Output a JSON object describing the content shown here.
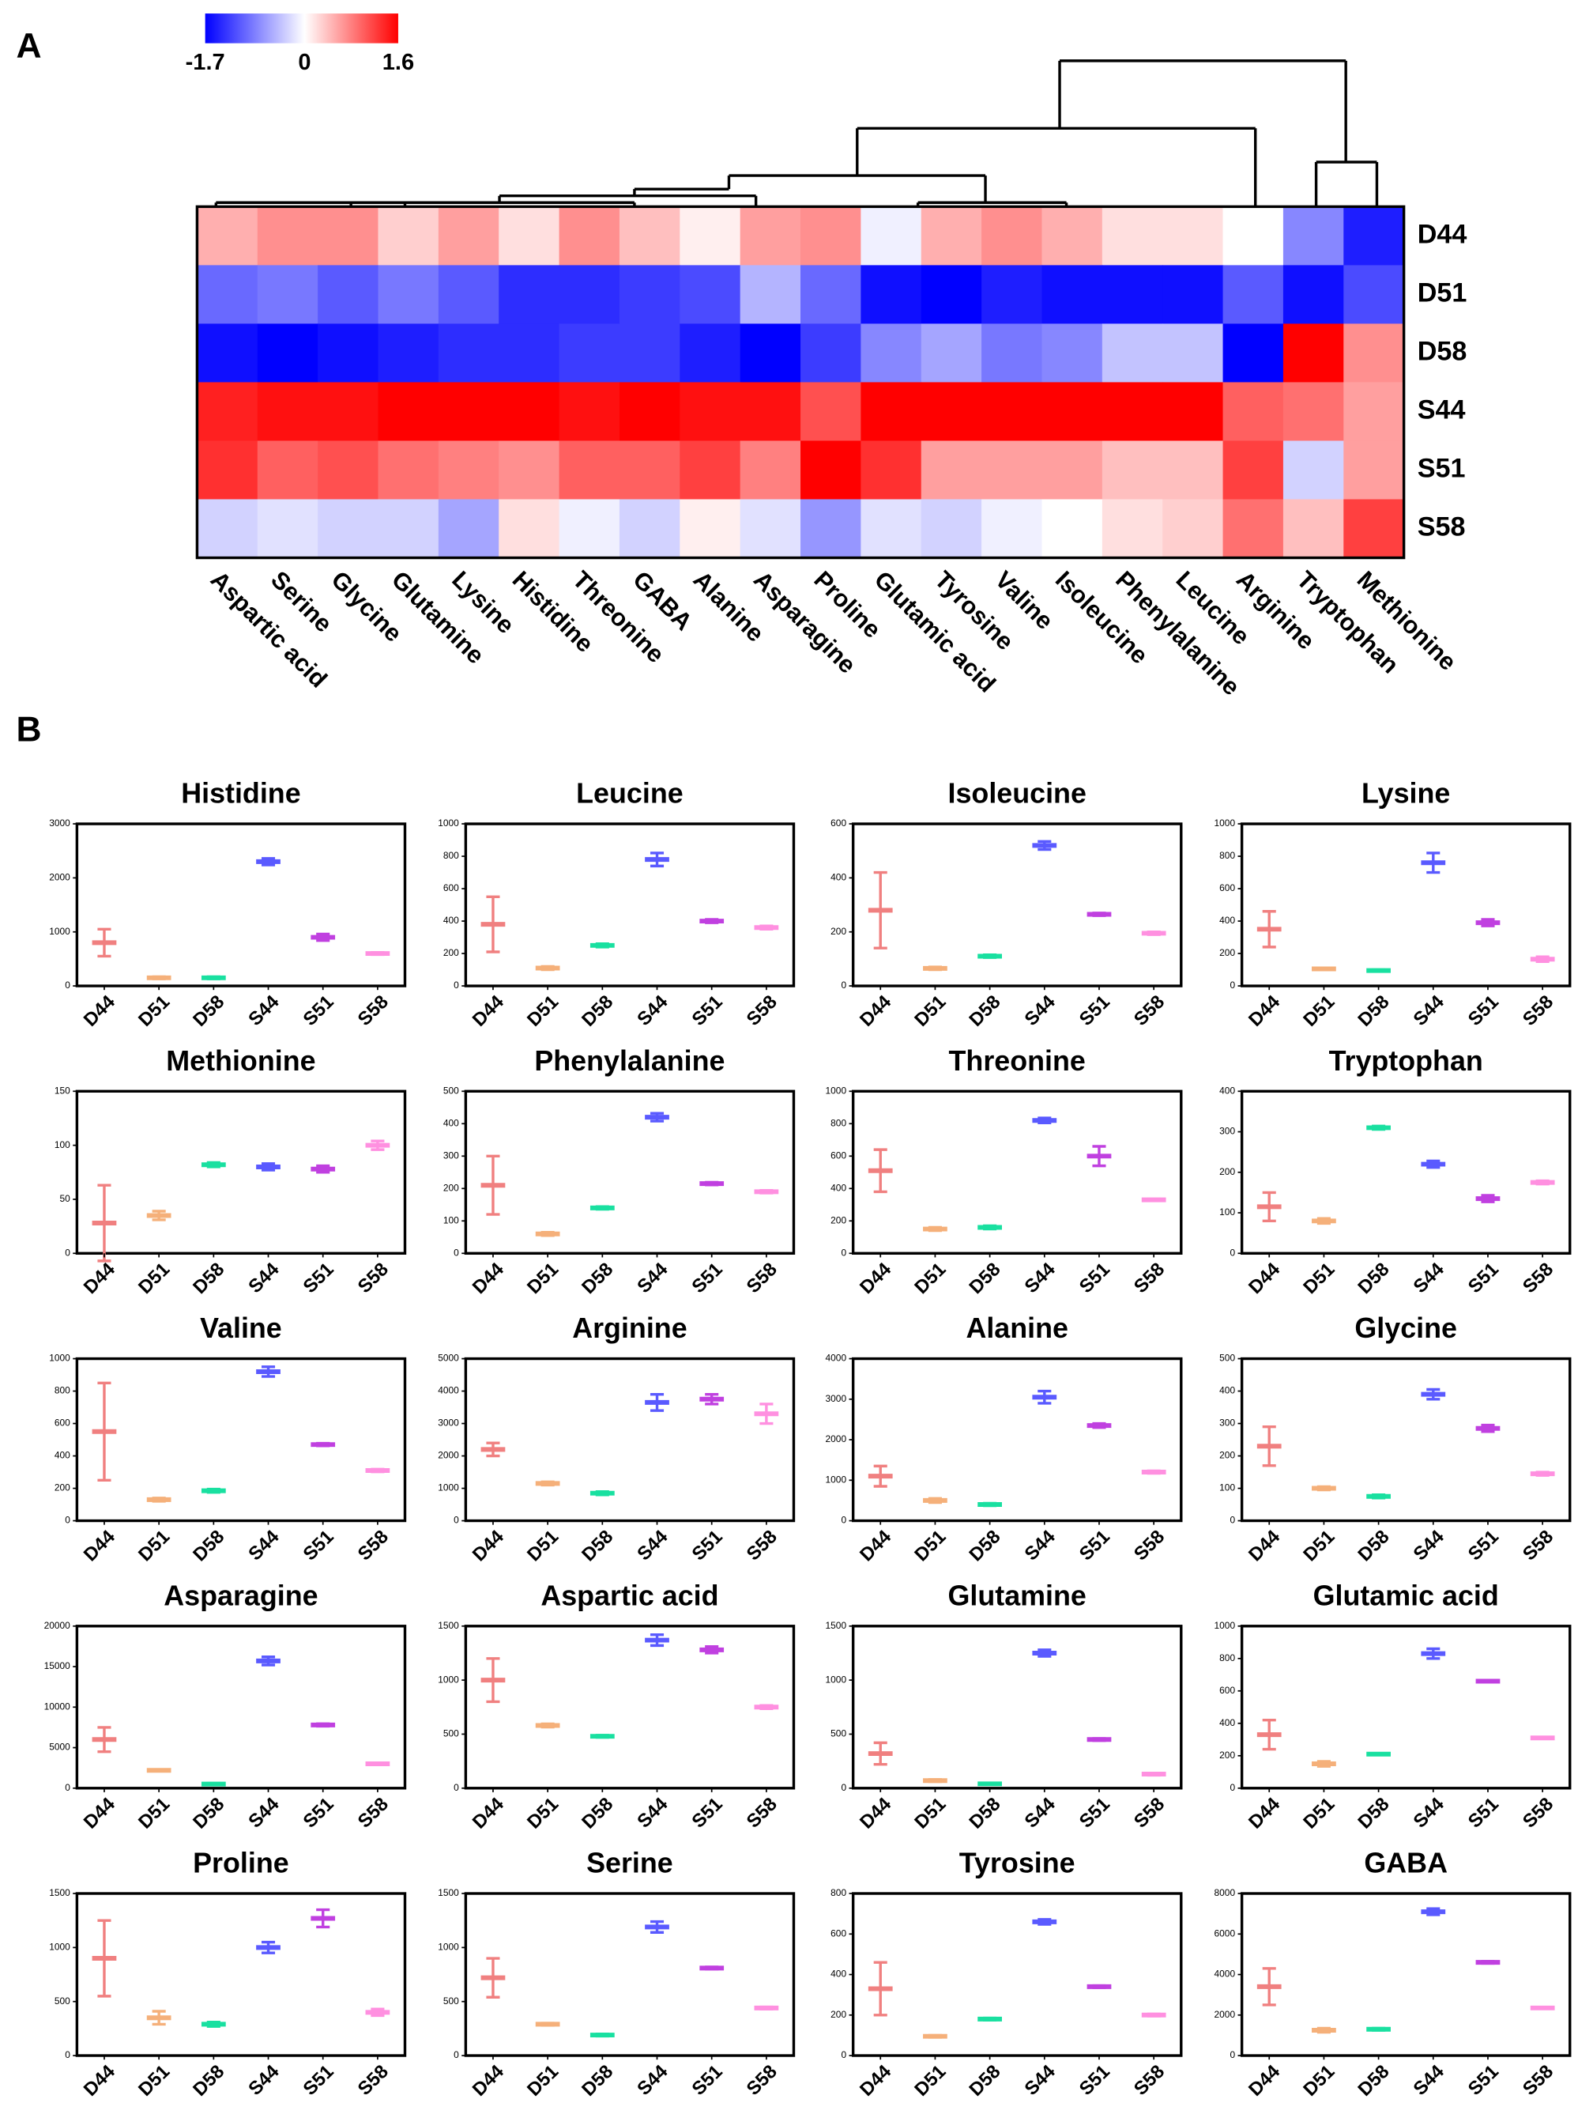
{
  "panel_labels": [
    "A",
    "B"
  ],
  "chart_data": [
    {
      "type": "heatmap",
      "columns": [
        "Aspartic acid",
        "Serine",
        "Glycine",
        "Glutamine",
        "Lysine",
        "Histidine",
        "Threonine",
        "GABA",
        "Alanine",
        "Asparagine",
        "Proline",
        "Glutamic acid",
        "Tyrosine",
        "Valine",
        "Isoleucine",
        "Phenylalanine",
        "Leucine",
        "Arginine",
        "Tryptophan",
        "Methionine"
      ],
      "rows": [
        "D44",
        "D51",
        "D58",
        "S44",
        "S51",
        "S58"
      ],
      "values": [
        [
          0.5,
          0.7,
          0.7,
          0.3,
          0.6,
          0.2,
          0.7,
          0.4,
          0.1,
          0.6,
          0.7,
          -0.1,
          0.5,
          0.7,
          0.5,
          0.2,
          0.2,
          0.0,
          -0.8,
          -1.5
        ],
        [
          -1.0,
          -0.9,
          -1.1,
          -0.9,
          -1.1,
          -1.4,
          -1.4,
          -1.3,
          -1.2,
          -0.5,
          -1.0,
          -1.6,
          -1.7,
          -1.5,
          -1.6,
          -1.6,
          -1.6,
          -1.1,
          -1.6,
          -1.2
        ],
        [
          -1.6,
          -1.7,
          -1.6,
          -1.5,
          -1.4,
          -1.4,
          -1.3,
          -1.3,
          -1.5,
          -1.7,
          -1.3,
          -0.8,
          -0.6,
          -0.9,
          -0.8,
          -0.4,
          -0.4,
          -1.7,
          1.6,
          0.7
        ],
        [
          1.4,
          1.5,
          1.5,
          1.6,
          1.6,
          1.6,
          1.5,
          1.6,
          1.5,
          1.5,
          1.1,
          1.6,
          1.6,
          1.6,
          1.6,
          1.6,
          1.6,
          1.0,
          0.9,
          0.6
        ],
        [
          1.3,
          1.0,
          1.1,
          0.9,
          0.8,
          0.7,
          1.0,
          1.0,
          1.2,
          0.8,
          1.6,
          1.3,
          0.6,
          0.6,
          0.6,
          0.4,
          0.4,
          1.2,
          -0.3,
          0.6
        ],
        [
          -0.3,
          -0.2,
          -0.3,
          -0.3,
          -0.6,
          0.2,
          -0.1,
          -0.3,
          0.1,
          -0.2,
          -0.7,
          -0.2,
          -0.3,
          -0.1,
          0.0,
          0.2,
          0.3,
          0.9,
          0.4,
          1.2
        ]
      ],
      "zlim": [
        -1.7,
        1.6
      ],
      "zticks": [
        -1.7,
        0,
        1.6
      ],
      "colors": [
        "#0000ff",
        "#ffffff",
        "#ff0000"
      ]
    },
    {
      "type": "errorbar",
      "title": "Histidine",
      "categories": [
        "D44",
        "D51",
        "D58",
        "S44",
        "S51",
        "S58"
      ],
      "colors": [
        "#f08080",
        "#f5b07a",
        "#19e0a0",
        "#5a5aff",
        "#c040e0",
        "#ff90e0"
      ],
      "values": [
        800,
        150,
        150,
        2300,
        900,
        600
      ],
      "errors": [
        250,
        20,
        20,
        60,
        60,
        20
      ],
      "ylim": [
        0,
        3000
      ],
      "yticks": [
        0,
        1000,
        2000,
        3000
      ]
    },
    {
      "type": "errorbar",
      "title": "Leucine",
      "categories": [
        "D44",
        "D51",
        "D58",
        "S44",
        "S51",
        "S58"
      ],
      "colors": [
        "#f08080",
        "#f5b07a",
        "#19e0a0",
        "#5a5aff",
        "#c040e0",
        "#ff90e0"
      ],
      "values": [
        380,
        110,
        250,
        780,
        400,
        360
      ],
      "errors": [
        170,
        10,
        10,
        40,
        10,
        10
      ],
      "ylim": [
        0,
        1000
      ],
      "yticks": [
        0,
        200,
        400,
        600,
        800,
        1000
      ]
    },
    {
      "type": "errorbar",
      "title": "Isoleucine",
      "categories": [
        "D44",
        "D51",
        "D58",
        "S44",
        "S51",
        "S58"
      ],
      "colors": [
        "#f08080",
        "#f5b07a",
        "#19e0a0",
        "#5a5aff",
        "#c040e0",
        "#ff90e0"
      ],
      "values": [
        280,
        65,
        110,
        520,
        265,
        195
      ],
      "errors": [
        140,
        5,
        5,
        15,
        5,
        5
      ],
      "ylim": [
        0,
        600
      ],
      "yticks": [
        0,
        200,
        400,
        600
      ]
    },
    {
      "type": "errorbar",
      "title": "Lysine",
      "categories": [
        "D44",
        "D51",
        "D58",
        "S44",
        "S51",
        "S58"
      ],
      "colors": [
        "#f08080",
        "#f5b07a",
        "#19e0a0",
        "#5a5aff",
        "#c040e0",
        "#ff90e0"
      ],
      "values": [
        350,
        105,
        95,
        760,
        390,
        165
      ],
      "errors": [
        110,
        5,
        5,
        60,
        20,
        15
      ],
      "ylim": [
        0,
        1000
      ],
      "yticks": [
        0,
        200,
        400,
        600,
        800,
        1000
      ]
    },
    {
      "type": "errorbar",
      "title": "Methionine",
      "categories": [
        "D44",
        "D51",
        "D58",
        "S44",
        "S51",
        "S58"
      ],
      "colors": [
        "#f08080",
        "#f5b07a",
        "#19e0a0",
        "#5a5aff",
        "#c040e0",
        "#ff90e0"
      ],
      "values": [
        28,
        35,
        82,
        80,
        78,
        100
      ],
      "errors": [
        35,
        4,
        2,
        3,
        3,
        4
      ],
      "ylim": [
        0,
        150
      ],
      "yticks": [
        0,
        50,
        100,
        150
      ]
    },
    {
      "type": "errorbar",
      "title": "Phenylalanine",
      "categories": [
        "D44",
        "D51",
        "D58",
        "S44",
        "S51",
        "S58"
      ],
      "colors": [
        "#f08080",
        "#f5b07a",
        "#19e0a0",
        "#5a5aff",
        "#c040e0",
        "#ff90e0"
      ],
      "values": [
        210,
        60,
        140,
        420,
        215,
        190
      ],
      "errors": [
        90,
        5,
        4,
        12,
        4,
        4
      ],
      "ylim": [
        0,
        500
      ],
      "yticks": [
        0,
        100,
        200,
        300,
        400,
        500
      ]
    },
    {
      "type": "errorbar",
      "title": "Threonine",
      "categories": [
        "D44",
        "D51",
        "D58",
        "S44",
        "S51",
        "S58"
      ],
      "colors": [
        "#f08080",
        "#f5b07a",
        "#19e0a0",
        "#5a5aff",
        "#c040e0",
        "#ff90e0"
      ],
      "values": [
        510,
        150,
        160,
        820,
        600,
        330
      ],
      "errors": [
        130,
        10,
        10,
        15,
        60,
        5
      ],
      "ylim": [
        0,
        1000
      ],
      "yticks": [
        0,
        200,
        400,
        600,
        800,
        1000
      ]
    },
    {
      "type": "errorbar",
      "title": "Tryptophan",
      "categories": [
        "D44",
        "D51",
        "D58",
        "S44",
        "S51",
        "S58"
      ],
      "colors": [
        "#f08080",
        "#f5b07a",
        "#19e0a0",
        "#5a5aff",
        "#c040e0",
        "#ff90e0"
      ],
      "values": [
        115,
        80,
        310,
        220,
        135,
        175
      ],
      "errors": [
        35,
        6,
        4,
        8,
        8,
        4
      ],
      "ylim": [
        0,
        400
      ],
      "yticks": [
        0,
        100,
        200,
        300,
        400
      ]
    },
    {
      "type": "errorbar",
      "title": "Valine",
      "categories": [
        "D44",
        "D51",
        "D58",
        "S44",
        "S51",
        "S58"
      ],
      "colors": [
        "#f08080",
        "#f5b07a",
        "#19e0a0",
        "#5a5aff",
        "#c040e0",
        "#ff90e0"
      ],
      "values": [
        550,
        130,
        185,
        920,
        470,
        310
      ],
      "errors": [
        300,
        10,
        10,
        30,
        8,
        8
      ],
      "ylim": [
        0,
        1000
      ],
      "yticks": [
        0,
        200,
        400,
        600,
        800,
        1000
      ]
    },
    {
      "type": "errorbar",
      "title": "Arginine",
      "categories": [
        "D44",
        "D51",
        "D58",
        "S44",
        "S51",
        "S58"
      ],
      "colors": [
        "#f08080",
        "#f5b07a",
        "#19e0a0",
        "#5a5aff",
        "#c040e0",
        "#ff90e0"
      ],
      "values": [
        2200,
        1150,
        850,
        3650,
        3750,
        3300
      ],
      "errors": [
        200,
        50,
        50,
        250,
        150,
        300
      ],
      "ylim": [
        0,
        5000
      ],
      "yticks": [
        0,
        1000,
        2000,
        3000,
        4000,
        5000
      ]
    },
    {
      "type": "errorbar",
      "title": "Alanine",
      "categories": [
        "D44",
        "D51",
        "D58",
        "S44",
        "S51",
        "S58"
      ],
      "colors": [
        "#f08080",
        "#f5b07a",
        "#19e0a0",
        "#5a5aff",
        "#c040e0",
        "#ff90e0"
      ],
      "values": [
        1100,
        500,
        400,
        3050,
        2350,
        1200
      ],
      "errors": [
        250,
        50,
        30,
        150,
        50,
        30
      ],
      "ylim": [
        0,
        4000
      ],
      "yticks": [
        0,
        1000,
        2000,
        3000,
        4000
      ]
    },
    {
      "type": "errorbar",
      "title": "Glycine",
      "categories": [
        "D44",
        "D51",
        "D58",
        "S44",
        "S51",
        "S58"
      ],
      "colors": [
        "#f08080",
        "#f5b07a",
        "#19e0a0",
        "#5a5aff",
        "#c040e0",
        "#ff90e0"
      ],
      "values": [
        230,
        100,
        75,
        390,
        285,
        145
      ],
      "errors": [
        60,
        5,
        5,
        15,
        10,
        5
      ],
      "ylim": [
        0,
        500
      ],
      "yticks": [
        0,
        100,
        200,
        300,
        400,
        500
      ]
    },
    {
      "type": "errorbar",
      "title": "Asparagine",
      "categories": [
        "D44",
        "D51",
        "D58",
        "S44",
        "S51",
        "S58"
      ],
      "colors": [
        "#f08080",
        "#f5b07a",
        "#19e0a0",
        "#5a5aff",
        "#c040e0",
        "#ff90e0"
      ],
      "values": [
        6000,
        2200,
        500,
        15700,
        7800,
        3000
      ],
      "errors": [
        1500,
        100,
        100,
        500,
        150,
        100
      ],
      "ylim": [
        0,
        20000
      ],
      "yticks": [
        0,
        5000,
        10000,
        15000,
        20000
      ]
    },
    {
      "type": "errorbar",
      "title": "Aspartic acid",
      "categories": [
        "D44",
        "D51",
        "D58",
        "S44",
        "S51",
        "S58"
      ],
      "colors": [
        "#f08080",
        "#f5b07a",
        "#19e0a0",
        "#5a5aff",
        "#c040e0",
        "#ff90e0"
      ],
      "values": [
        1000,
        580,
        480,
        1370,
        1280,
        750
      ],
      "errors": [
        200,
        15,
        10,
        50,
        30,
        15
      ],
      "ylim": [
        0,
        1500
      ],
      "yticks": [
        0,
        500,
        1000,
        1500
      ]
    },
    {
      "type": "errorbar",
      "title": "Glutamine",
      "categories": [
        "D44",
        "D51",
        "D58",
        "S44",
        "S51",
        "S58"
      ],
      "colors": [
        "#f08080",
        "#f5b07a",
        "#19e0a0",
        "#5a5aff",
        "#c040e0",
        "#ff90e0"
      ],
      "values": [
        320,
        70,
        40,
        1250,
        450,
        130
      ],
      "errors": [
        100,
        10,
        5,
        30,
        10,
        10
      ],
      "ylim": [
        0,
        1500
      ],
      "yticks": [
        0,
        500,
        1000,
        1500
      ]
    },
    {
      "type": "errorbar",
      "title": "Glutamic acid",
      "categories": [
        "D44",
        "D51",
        "D58",
        "S44",
        "S51",
        "S58"
      ],
      "colors": [
        "#f08080",
        "#f5b07a",
        "#19e0a0",
        "#5a5aff",
        "#c040e0",
        "#ff90e0"
      ],
      "values": [
        330,
        150,
        210,
        830,
        660,
        310
      ],
      "errors": [
        90,
        15,
        5,
        30,
        5,
        5
      ],
      "ylim": [
        0,
        1000
      ],
      "yticks": [
        0,
        200,
        400,
        600,
        800,
        1000
      ]
    },
    {
      "type": "errorbar",
      "title": "Proline",
      "categories": [
        "D44",
        "D51",
        "D58",
        "S44",
        "S51",
        "S58"
      ],
      "colors": [
        "#f08080",
        "#f5b07a",
        "#19e0a0",
        "#5a5aff",
        "#c040e0",
        "#ff90e0"
      ],
      "values": [
        900,
        350,
        290,
        1000,
        1270,
        400
      ],
      "errors": [
        350,
        60,
        20,
        50,
        80,
        30
      ],
      "ylim": [
        0,
        1500
      ],
      "yticks": [
        0,
        500,
        1000,
        1500
      ]
    },
    {
      "type": "errorbar",
      "title": "Serine",
      "categories": [
        "D44",
        "D51",
        "D58",
        "S44",
        "S51",
        "S58"
      ],
      "colors": [
        "#f08080",
        "#f5b07a",
        "#19e0a0",
        "#5a5aff",
        "#c040e0",
        "#ff90e0"
      ],
      "values": [
        720,
        290,
        190,
        1190,
        810,
        440
      ],
      "errors": [
        180,
        10,
        10,
        50,
        10,
        10
      ],
      "ylim": [
        0,
        1500
      ],
      "yticks": [
        0,
        500,
        1000,
        1500
      ]
    },
    {
      "type": "errorbar",
      "title": "Tyrosine",
      "categories": [
        "D44",
        "D51",
        "D58",
        "S44",
        "S51",
        "S58"
      ],
      "colors": [
        "#f08080",
        "#f5b07a",
        "#19e0a0",
        "#5a5aff",
        "#c040e0",
        "#ff90e0"
      ],
      "values": [
        330,
        95,
        180,
        660,
        340,
        200
      ],
      "errors": [
        130,
        5,
        5,
        12,
        5,
        5
      ],
      "ylim": [
        0,
        800
      ],
      "yticks": [
        0,
        200,
        400,
        600,
        800
      ]
    },
    {
      "type": "errorbar",
      "title": "GABA",
      "categories": [
        "D44",
        "D51",
        "D58",
        "S44",
        "S51",
        "S58"
      ],
      "colors": [
        "#f08080",
        "#f5b07a",
        "#19e0a0",
        "#5a5aff",
        "#c040e0",
        "#ff90e0"
      ],
      "values": [
        3400,
        1250,
        1300,
        7100,
        4600,
        2350
      ],
      "errors": [
        900,
        100,
        50,
        150,
        50,
        30
      ],
      "ylim": [
        0,
        8000
      ],
      "yticks": [
        0,
        2000,
        4000,
        6000,
        8000
      ]
    }
  ]
}
